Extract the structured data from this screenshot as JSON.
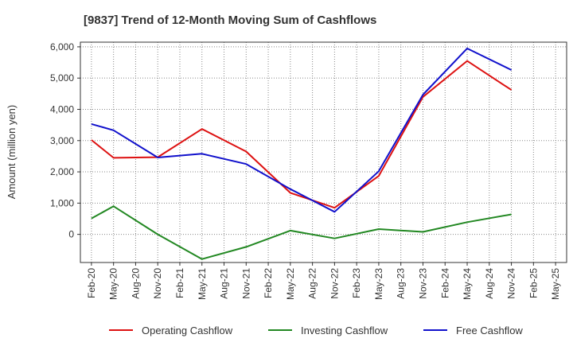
{
  "chart_data": {
    "type": "line",
    "title": "[9837]  Trend of 12-Month Moving Sum of Cashflows",
    "xlabel": "",
    "ylabel": "Amount (million yen)",
    "ylim": [
      -900,
      6150
    ],
    "yticks": [
      0,
      1000,
      2000,
      3000,
      4000,
      5000,
      6000
    ],
    "ytick_labels": [
      "0",
      "1,000",
      "2,000",
      "3,000",
      "4,000",
      "5,000",
      "6,000"
    ],
    "categories": [
      "Feb-20",
      "May-20",
      "Aug-20",
      "Nov-20",
      "Feb-21",
      "May-21",
      "Aug-21",
      "Nov-21",
      "Feb-22",
      "May-22",
      "Aug-22",
      "Nov-22",
      "Feb-23",
      "May-23",
      "Aug-23",
      "Nov-23",
      "Feb-24",
      "May-24",
      "Aug-24",
      "Nov-24",
      "Feb-25",
      "May-25"
    ],
    "grid": true,
    "legend_position": "bottom",
    "series": [
      {
        "name": "Operating Cashflow",
        "color": "#dd1111",
        "values": [
          3020,
          2450,
          null,
          2470,
          null,
          3370,
          null,
          2650,
          null,
          1330,
          null,
          850,
          null,
          1870,
          null,
          4400,
          null,
          5550,
          null,
          4620,
          null,
          null
        ]
      },
      {
        "name": "Investing Cashflow",
        "color": "#228822",
        "values": [
          510,
          900,
          null,
          0,
          null,
          -790,
          null,
          -400,
          null,
          120,
          null,
          -130,
          null,
          170,
          null,
          80,
          null,
          390,
          null,
          640,
          null,
          null
        ]
      },
      {
        "name": "Free Cashflow",
        "color": "#1111cc",
        "values": [
          3530,
          3330,
          null,
          2460,
          null,
          2580,
          null,
          2250,
          null,
          1450,
          null,
          720,
          null,
          2020,
          null,
          4470,
          null,
          5950,
          null,
          5260,
          null,
          null
        ]
      }
    ]
  }
}
